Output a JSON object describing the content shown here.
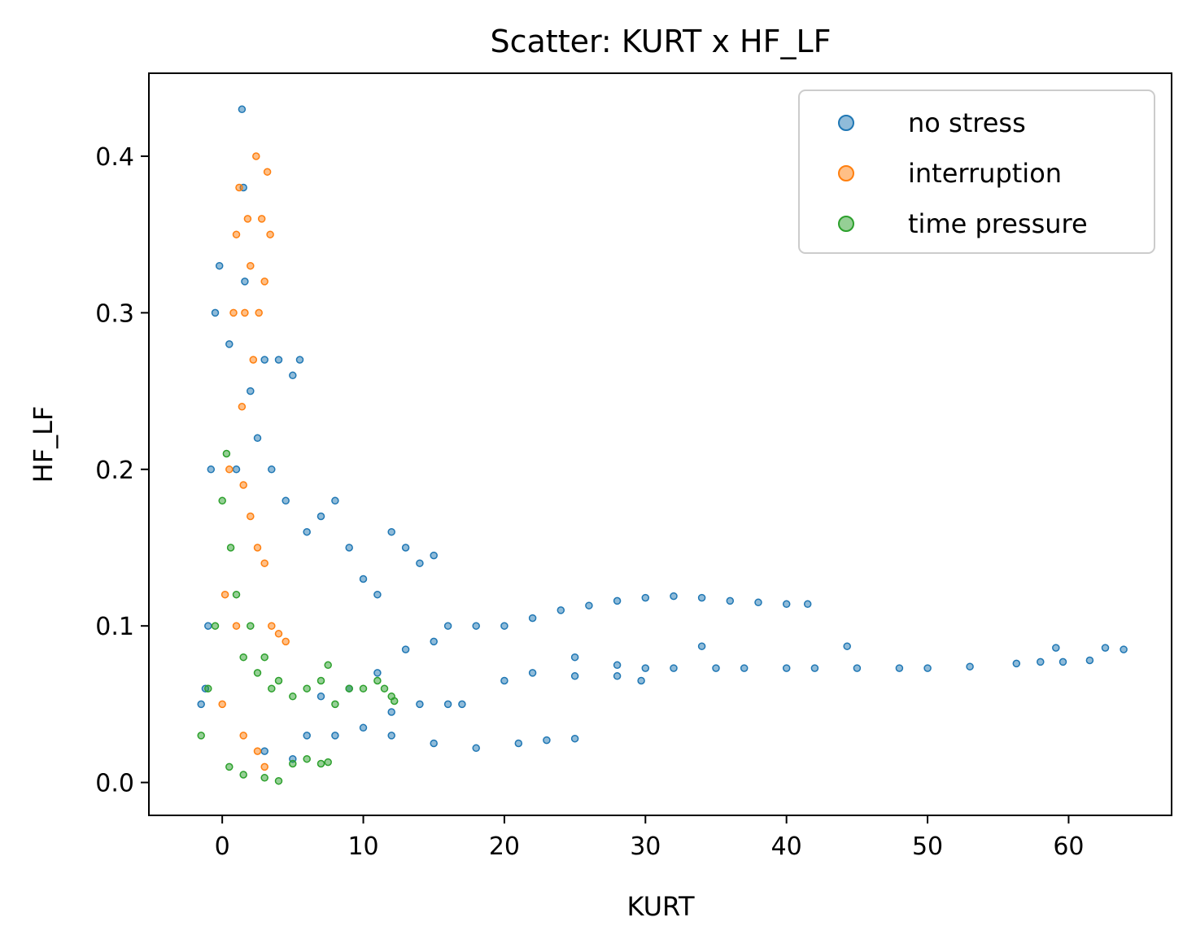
{
  "chart_data": {
    "type": "scatter",
    "title": "Scatter: KURT x HF_LF",
    "xlabel": "KURT",
    "ylabel": "HF_LF",
    "xlim": [
      -5.2,
      67.3
    ],
    "ylim": [
      -0.021,
      0.453
    ],
    "xticks": [
      0,
      10,
      20,
      30,
      40,
      50,
      60
    ],
    "yticks": [
      0.0,
      0.1,
      0.2,
      0.3,
      0.4
    ],
    "xtick_labels": [
      "0",
      "10",
      "20",
      "30",
      "40",
      "50",
      "60"
    ],
    "ytick_labels": [
      "0.0",
      "0.1",
      "0.2",
      "0.3",
      "0.4"
    ],
    "grid": false,
    "legend_position": "top-right",
    "series": [
      {
        "name": "no stress",
        "color": "#1f77b4",
        "points": [
          [
            -1.5,
            0.05
          ],
          [
            -1.2,
            0.06
          ],
          [
            -1.0,
            0.1
          ],
          [
            -0.8,
            0.2
          ],
          [
            -0.5,
            0.3
          ],
          [
            -0.2,
            0.33
          ],
          [
            0.5,
            0.28
          ],
          [
            1.0,
            0.2
          ],
          [
            1.4,
            0.43
          ],
          [
            1.5,
            0.38
          ],
          [
            1.6,
            0.32
          ],
          [
            2.0,
            0.25
          ],
          [
            2.5,
            0.22
          ],
          [
            3.0,
            0.27
          ],
          [
            3.5,
            0.2
          ],
          [
            4.0,
            0.27
          ],
          [
            4.5,
            0.18
          ],
          [
            5.0,
            0.26
          ],
          [
            5.5,
            0.27
          ],
          [
            6.0,
            0.16
          ],
          [
            7.0,
            0.17
          ],
          [
            8.0,
            0.18
          ],
          [
            9.0,
            0.15
          ],
          [
            10.0,
            0.13
          ],
          [
            11.0,
            0.12
          ],
          [
            12.0,
            0.16
          ],
          [
            13.0,
            0.15
          ],
          [
            14.0,
            0.14
          ],
          [
            15.0,
            0.145
          ],
          [
            16.0,
            0.1
          ],
          [
            18.0,
            0.1
          ],
          [
            20.0,
            0.1
          ],
          [
            22.0,
            0.105
          ],
          [
            24.0,
            0.11
          ],
          [
            26.0,
            0.113
          ],
          [
            28.0,
            0.116
          ],
          [
            30.0,
            0.118
          ],
          [
            32.0,
            0.119
          ],
          [
            34.0,
            0.118
          ],
          [
            36.0,
            0.116
          ],
          [
            38.0,
            0.115
          ],
          [
            40.0,
            0.114
          ],
          [
            41.5,
            0.114
          ],
          [
            25.0,
            0.08
          ],
          [
            28.0,
            0.075
          ],
          [
            30.0,
            0.073
          ],
          [
            32.0,
            0.073
          ],
          [
            34.0,
            0.087
          ],
          [
            35.0,
            0.073
          ],
          [
            37.0,
            0.073
          ],
          [
            40.0,
            0.073
          ],
          [
            42.0,
            0.073
          ],
          [
            44.3,
            0.087
          ],
          [
            45.0,
            0.073
          ],
          [
            48.0,
            0.073
          ],
          [
            50.0,
            0.073
          ],
          [
            53.0,
            0.074
          ],
          [
            56.3,
            0.076
          ],
          [
            58.0,
            0.077
          ],
          [
            59.1,
            0.086
          ],
          [
            59.6,
            0.077
          ],
          [
            61.5,
            0.078
          ],
          [
            62.6,
            0.086
          ],
          [
            63.9,
            0.085
          ],
          [
            17.0,
            0.05
          ],
          [
            20.0,
            0.065
          ],
          [
            22.0,
            0.07
          ],
          [
            25.0,
            0.068
          ],
          [
            28.0,
            0.068
          ],
          [
            29.7,
            0.065
          ],
          [
            12.0,
            0.03
          ],
          [
            15.0,
            0.025
          ],
          [
            18.0,
            0.022
          ],
          [
            21.0,
            0.025
          ],
          [
            23.0,
            0.027
          ],
          [
            25.0,
            0.028
          ],
          [
            8.0,
            0.03
          ],
          [
            10.0,
            0.035
          ],
          [
            12.0,
            0.045
          ],
          [
            14.0,
            0.05
          ],
          [
            16.0,
            0.05
          ],
          [
            7.0,
            0.055
          ],
          [
            9.0,
            0.06
          ],
          [
            11.0,
            0.07
          ],
          [
            13.0,
            0.085
          ],
          [
            15.0,
            0.09
          ],
          [
            3.0,
            0.02
          ],
          [
            5.0,
            0.015
          ],
          [
            6.0,
            0.03
          ]
        ]
      },
      {
        "name": "interruption",
        "color": "#ff7f0e",
        "points": [
          [
            0.0,
            0.05
          ],
          [
            0.2,
            0.12
          ],
          [
            0.5,
            0.2
          ],
          [
            0.8,
            0.3
          ],
          [
            1.0,
            0.35
          ],
          [
            1.2,
            0.38
          ],
          [
            1.4,
            0.24
          ],
          [
            1.6,
            0.3
          ],
          [
            1.8,
            0.36
          ],
          [
            2.0,
            0.33
          ],
          [
            2.2,
            0.27
          ],
          [
            2.4,
            0.4
          ],
          [
            2.6,
            0.3
          ],
          [
            2.8,
            0.36
          ],
          [
            3.0,
            0.32
          ],
          [
            3.2,
            0.39
          ],
          [
            3.4,
            0.35
          ],
          [
            1.5,
            0.19
          ],
          [
            2.0,
            0.17
          ],
          [
            2.5,
            0.15
          ],
          [
            3.0,
            0.14
          ],
          [
            3.5,
            0.1
          ],
          [
            4.0,
            0.095
          ],
          [
            4.5,
            0.09
          ],
          [
            1.0,
            0.1
          ],
          [
            1.5,
            0.03
          ],
          [
            2.5,
            0.02
          ],
          [
            3.0,
            0.01
          ]
        ]
      },
      {
        "name": "time pressure",
        "color": "#2ca02c",
        "points": [
          [
            -1.5,
            0.03
          ],
          [
            -1.0,
            0.06
          ],
          [
            -0.5,
            0.1
          ],
          [
            0.0,
            0.18
          ],
          [
            0.3,
            0.21
          ],
          [
            0.6,
            0.15
          ],
          [
            1.0,
            0.12
          ],
          [
            1.5,
            0.08
          ],
          [
            2.0,
            0.1
          ],
          [
            2.5,
            0.07
          ],
          [
            3.0,
            0.08
          ],
          [
            3.5,
            0.06
          ],
          [
            4.0,
            0.065
          ],
          [
            5.0,
            0.055
          ],
          [
            6.0,
            0.06
          ],
          [
            7.0,
            0.065
          ],
          [
            7.5,
            0.075
          ],
          [
            8.0,
            0.05
          ],
          [
            9.0,
            0.06
          ],
          [
            10.0,
            0.06
          ],
          [
            11.0,
            0.065
          ],
          [
            11.5,
            0.06
          ],
          [
            12.0,
            0.055
          ],
          [
            12.2,
            0.052
          ],
          [
            0.5,
            0.01
          ],
          [
            1.5,
            0.005
          ],
          [
            3.0,
            0.003
          ],
          [
            4.0,
            0.001
          ],
          [
            5.0,
            0.012
          ],
          [
            6.0,
            0.015
          ],
          [
            7.0,
            0.012
          ],
          [
            7.5,
            0.013
          ]
        ]
      }
    ]
  }
}
